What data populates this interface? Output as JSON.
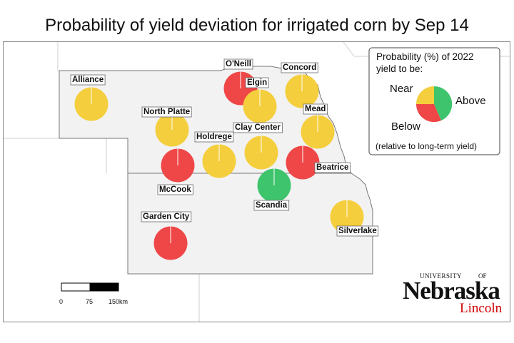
{
  "title": "Probability of yield deviation for irrigated corn by Sep 14",
  "colors": {
    "below": "#ef4747",
    "near": "#f4ce3c",
    "above": "#3ec46d",
    "state_fill": "#f2f2f2",
    "border": "#777777"
  },
  "locations": [
    {
      "name": "Alliance",
      "category": "near"
    },
    {
      "name": "O'Neill",
      "category": "below"
    },
    {
      "name": "Elgin",
      "category": "near"
    },
    {
      "name": "Concord",
      "category": "near"
    },
    {
      "name": "North Platte",
      "category": "near"
    },
    {
      "name": "Mead",
      "category": "near"
    },
    {
      "name": "Clay Center",
      "category": "near"
    },
    {
      "name": "Holdrege",
      "category": "near"
    },
    {
      "name": "McCook",
      "category": "below"
    },
    {
      "name": "Beatrice",
      "category": "below"
    },
    {
      "name": "Scandia",
      "category": "above"
    },
    {
      "name": "Silverlake",
      "category": "near"
    },
    {
      "name": "Garden City",
      "category": "below"
    }
  ],
  "legend": {
    "title_line1": "Probability (%) of 2022",
    "title_line2": "yield to be:",
    "near": "Near",
    "above": "Above",
    "below": "Below",
    "note": "(relative to long-term yield)"
  },
  "scale_bar": {
    "ticks": [
      "0",
      "75",
      "150km"
    ]
  },
  "logo": {
    "university": "UNIVERSITY",
    "of": "OF",
    "name": "Nebraska",
    "campus": "Lincoln"
  }
}
